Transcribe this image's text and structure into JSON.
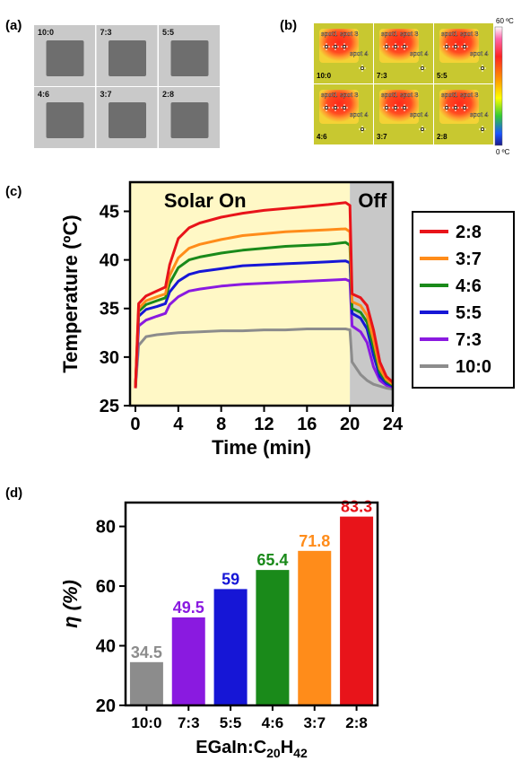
{
  "panels": {
    "a": {
      "label": "(a)"
    },
    "b": {
      "label": "(b)"
    },
    "c": {
      "label": "(c)"
    },
    "d": {
      "label": "(d)"
    }
  },
  "photo_panel": {
    "tiles": [
      "10:0",
      "7:3",
      "5:5",
      "4:6",
      "3:7",
      "2:8"
    ],
    "background": "#c9c9c9",
    "sample_color": "#6e6e6e"
  },
  "thermal_panel": {
    "tiles": [
      "10:0",
      "7:3",
      "5:5",
      "4:6",
      "3:7",
      "2:8"
    ],
    "spot_labels": [
      "spot1",
      "spot2",
      "spot 3",
      "spot 4"
    ],
    "colorbar_max": "60 ºC",
    "colorbar_min": "0 ºC"
  },
  "chart_data": [
    {
      "type": "line",
      "panel": "c",
      "xlabel": "Time (min)",
      "ylabel": "Temperature (ºC)",
      "xlim": [
        -0.5,
        24
      ],
      "ylim": [
        25,
        48
      ],
      "xticks": [
        0,
        4,
        8,
        12,
        16,
        20,
        24
      ],
      "yticks": [
        25,
        30,
        35,
        40,
        45
      ],
      "regions": [
        {
          "label": "Solar On",
          "from": -0.5,
          "to": 20,
          "color": "#fff8c6"
        },
        {
          "label": "Off",
          "from": 20,
          "to": 24,
          "color": "#c8c8c8"
        }
      ],
      "legend_position": "right",
      "series": [
        {
          "name": "2:8",
          "color": "#e8141a",
          "points": [
            [
              0,
              26.8
            ],
            [
              0.3,
              35.5
            ],
            [
              1,
              36.3
            ],
            [
              2,
              36.8
            ],
            [
              2.8,
              37.2
            ],
            [
              3.2,
              39.5
            ],
            [
              4,
              42.2
            ],
            [
              5,
              43.3
            ],
            [
              6,
              43.8
            ],
            [
              8,
              44.4
            ],
            [
              10,
              44.8
            ],
            [
              12,
              45.1
            ],
            [
              14,
              45.3
            ],
            [
              16,
              45.5
            ],
            [
              18,
              45.7
            ],
            [
              19.6,
              45.9
            ],
            [
              20,
              45.6
            ],
            [
              20.2,
              36.5
            ],
            [
              21,
              36.1
            ],
            [
              21.6,
              35.3
            ],
            [
              22.2,
              32.8
            ],
            [
              22.8,
              29.5
            ],
            [
              23.4,
              28
            ],
            [
              24,
              27.4
            ]
          ]
        },
        {
          "name": "3:7",
          "color": "#ff8c1a",
          "points": [
            [
              0,
              26.8
            ],
            [
              0.3,
              35
            ],
            [
              1,
              35.8
            ],
            [
              2,
              36.2
            ],
            [
              2.8,
              36.5
            ],
            [
              3.2,
              38.4
            ],
            [
              4,
              40.2
            ],
            [
              5,
              41.2
            ],
            [
              6,
              41.6
            ],
            [
              8,
              42.1
            ],
            [
              10,
              42.5
            ],
            [
              12,
              42.7
            ],
            [
              14,
              42.9
            ],
            [
              16,
              43
            ],
            [
              18,
              43.1
            ],
            [
              19.6,
              43.2
            ],
            [
              20,
              42.9
            ],
            [
              20.2,
              35.7
            ],
            [
              21,
              35.3
            ],
            [
              21.6,
              34.3
            ],
            [
              22.2,
              31.8
            ],
            [
              22.8,
              28.8
            ],
            [
              23.4,
              27.7
            ],
            [
              24,
              27.2
            ]
          ]
        },
        {
          "name": "4:6",
          "color": "#1a8a1a",
          "points": [
            [
              0,
              26.8
            ],
            [
              0.3,
              34.7
            ],
            [
              1,
              35.4
            ],
            [
              2,
              35.8
            ],
            [
              2.8,
              36.1
            ],
            [
              3.2,
              37.6
            ],
            [
              4,
              39.2
            ],
            [
              5,
              40
            ],
            [
              6,
              40.3
            ],
            [
              8,
              40.7
            ],
            [
              10,
              41
            ],
            [
              12,
              41.2
            ],
            [
              14,
              41.4
            ],
            [
              16,
              41.5
            ],
            [
              18,
              41.6
            ],
            [
              19.6,
              41.8
            ],
            [
              20,
              41.5
            ],
            [
              20.2,
              35
            ],
            [
              21,
              34.6
            ],
            [
              21.6,
              33.6
            ],
            [
              22.2,
              31
            ],
            [
              22.8,
              28.4
            ],
            [
              23.4,
              27.5
            ],
            [
              24,
              27.1
            ]
          ]
        },
        {
          "name": "5:5",
          "color": "#1616d6",
          "points": [
            [
              0,
              26.8
            ],
            [
              0.3,
              34.2
            ],
            [
              1,
              34.9
            ],
            [
              2,
              35.2
            ],
            [
              2.8,
              35.5
            ],
            [
              3.2,
              36.7
            ],
            [
              4,
              37.8
            ],
            [
              5,
              38.5
            ],
            [
              6,
              38.8
            ],
            [
              8,
              39.1
            ],
            [
              10,
              39.4
            ],
            [
              12,
              39.5
            ],
            [
              14,
              39.6
            ],
            [
              16,
              39.7
            ],
            [
              18,
              39.8
            ],
            [
              19.6,
              39.9
            ],
            [
              20,
              39.7
            ],
            [
              20.2,
              34.5
            ],
            [
              21,
              34
            ],
            [
              21.6,
              32.9
            ],
            [
              22.2,
              30.2
            ],
            [
              22.8,
              28
            ],
            [
              23.4,
              27.3
            ],
            [
              24,
              27
            ]
          ]
        },
        {
          "name": "7:3",
          "color": "#8a1ae0",
          "points": [
            [
              0,
              26.8
            ],
            [
              0.3,
              33.2
            ],
            [
              1,
              33.8
            ],
            [
              2,
              34.2
            ],
            [
              2.8,
              34.5
            ],
            [
              3.2,
              35.4
            ],
            [
              4,
              36.2
            ],
            [
              5,
              36.8
            ],
            [
              6,
              37
            ],
            [
              8,
              37.3
            ],
            [
              10,
              37.5
            ],
            [
              12,
              37.6
            ],
            [
              14,
              37.7
            ],
            [
              16,
              37.8
            ],
            [
              18,
              37.9
            ],
            [
              19.6,
              38
            ],
            [
              20,
              37.8
            ],
            [
              20.2,
              33.2
            ],
            [
              21,
              32.6
            ],
            [
              21.6,
              31.5
            ],
            [
              22.2,
              29
            ],
            [
              22.8,
              27.6
            ],
            [
              23.4,
              27.1
            ],
            [
              24,
              26.9
            ]
          ]
        },
        {
          "name": "10:0",
          "color": "#8c8c8c",
          "points": [
            [
              0,
              26.8
            ],
            [
              0.3,
              31.2
            ],
            [
              1,
              32.1
            ],
            [
              2,
              32.3
            ],
            [
              4,
              32.5
            ],
            [
              6,
              32.6
            ],
            [
              8,
              32.7
            ],
            [
              10,
              32.7
            ],
            [
              12,
              32.8
            ],
            [
              14,
              32.8
            ],
            [
              16,
              32.9
            ],
            [
              18,
              32.9
            ],
            [
              19.6,
              32.9
            ],
            [
              20,
              32.8
            ],
            [
              20.2,
              29.5
            ],
            [
              21,
              28.2
            ],
            [
              21.6,
              27.6
            ],
            [
              22.2,
              27.2
            ],
            [
              22.8,
              27
            ],
            [
              23.4,
              26.8
            ],
            [
              24,
              26.7
            ]
          ]
        }
      ]
    },
    {
      "type": "bar",
      "panel": "d",
      "xlabel": "EGaIn:C20H42",
      "ylabel": "η (%)",
      "ylim": [
        20,
        88
      ],
      "yticks": [
        20,
        40,
        60,
        80
      ],
      "categories": [
        "10:0",
        "7:3",
        "5:5",
        "4:6",
        "3:7",
        "2:8"
      ],
      "values": [
        34.5,
        49.5,
        59,
        65.4,
        71.8,
        83.3
      ],
      "value_labels": [
        "34.5",
        "49.5",
        "59",
        "65.4",
        "71.8",
        "83.3"
      ],
      "colors": [
        "#8c8c8c",
        "#8a1ae0",
        "#1616d6",
        "#1a8a1a",
        "#ff8c1a",
        "#e8141a"
      ]
    }
  ]
}
